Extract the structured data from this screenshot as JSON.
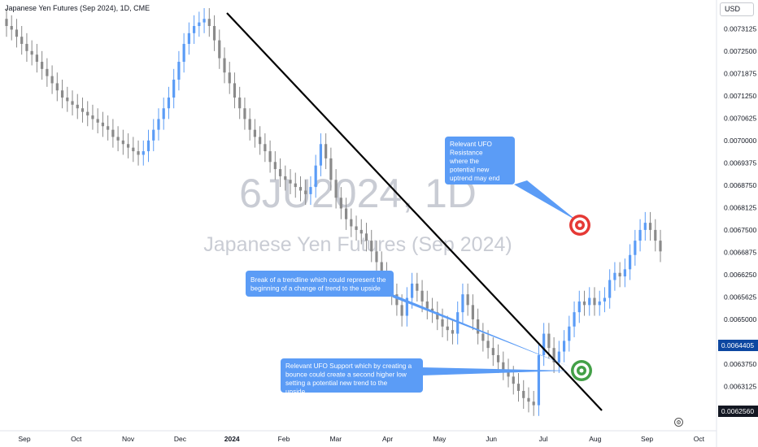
{
  "header": {
    "title": "Japanese Yen Futures (Sep 2024), 1D, CME",
    "currency": "USD"
  },
  "watermark": {
    "symbol": "6JU2024, 1D",
    "name": "Japanese Yen Futures (Sep 2024)"
  },
  "colors": {
    "up_candle": "#5b9cf6",
    "down_candle": "#8a8a8a",
    "trendline": "#000000",
    "callout_fill": "#5b9cf6",
    "callout_text": "#ffffff",
    "target_red": "#e53935",
    "target_green": "#43a047",
    "last_price_bg": "#0d47a1",
    "low_price_bg": "#131722"
  },
  "chart_data": {
    "type": "candlestick",
    "title": "Japanese Yen Futures (Sep 2024), 1D, CME",
    "xlabel": "",
    "ylabel": "",
    "ylim": [
      0.0062,
      0.00737
    ],
    "x_ticks": [
      "Sep",
      "Oct",
      "Nov",
      "Dec",
      "2024",
      "Feb",
      "Mar",
      "Apr",
      "May",
      "Jun",
      "Jul",
      "Aug",
      "Sep",
      "Oct"
    ],
    "y_ticks": [
      "0.0073125",
      "0.0072500",
      "0.0071875",
      "0.0071250",
      "0.0070625",
      "0.0070000",
      "0.0069375",
      "0.0068750",
      "0.0068125",
      "0.0067500",
      "0.0066875",
      "0.0066250",
      "0.0065625",
      "0.0065000",
      "0.0063750",
      "0.0063125"
    ],
    "current_price": "0.0064405",
    "low_price": "0.0062560",
    "series": [
      {
        "approx_close": [
          0.00732,
          0.00731,
          0.00729,
          0.00727,
          0.00725,
          0.00724,
          0.00722,
          0.0072,
          0.00718,
          0.00716,
          0.00714,
          0.00712,
          0.00711,
          0.0071,
          0.00709,
          0.00708,
          0.00707,
          0.00706,
          0.00705,
          0.00704,
          0.00703,
          0.00701,
          0.007,
          0.00699,
          0.00698,
          0.00697,
          0.00696,
          0.00697,
          0.007,
          0.00703,
          0.00706,
          0.00709,
          0.00712,
          0.00717,
          0.00722,
          0.00727,
          0.0073,
          0.00732,
          0.00733,
          0.00734,
          0.00732,
          0.00728,
          0.00723,
          0.00719,
          0.00716,
          0.00712,
          0.00709,
          0.00706,
          0.00703,
          0.00701,
          0.00699,
          0.00697,
          0.00694,
          0.00692,
          0.0069,
          0.00689,
          0.00688,
          0.00687,
          0.00686,
          0.00685,
          0.00687,
          0.00693,
          0.00699,
          0.00695,
          0.00689,
          0.00684,
          0.00681,
          0.00678,
          0.00676,
          0.00675,
          0.00674,
          0.00672,
          0.00669,
          0.00666,
          0.00663,
          0.0066,
          0.00657,
          0.00654,
          0.00651,
          0.00656,
          0.0066,
          0.00658,
          0.00655,
          0.00653,
          0.00652,
          0.0065,
          0.00648,
          0.00647,
          0.00646,
          0.00652,
          0.00657,
          0.00654,
          0.0065,
          0.00646,
          0.00644,
          0.00642,
          0.0064,
          0.00638,
          0.00636,
          0.00634,
          0.00632,
          0.0063,
          0.00628,
          0.00627,
          0.00626,
          0.0064,
          0.00646,
          0.00642,
          0.00638,
          0.00641,
          0.00644,
          0.00648,
          0.00652,
          0.00655,
          0.00654,
          0.00656,
          0.00654,
          0.00655,
          0.00656,
          0.00661,
          0.00663,
          0.00662,
          0.00664,
          0.00668,
          0.00672,
          0.00675,
          0.00677,
          0.00675,
          0.00672,
          0.00669
        ]
      }
    ],
    "annotations": [
      "Relevant UFO Resistance where the potential new uptrend may end",
      "Break of a trendline which could represent the beginning of a change of trend to the upside",
      "Relevant UFO Support which by creating a bounce could create a second higher low setting a potential new trend to the upside"
    ]
  },
  "callouts": {
    "resistance": "Relevant UFO Resistance where the potential new uptrend may end",
    "trendline_break": "Break of a trendline which could represent the beginning of a change of trend to the upside",
    "support": "Relevant UFO Support which by creating a bounce could create a second higher low setting a potential new trend to the upside"
  },
  "icons": {
    "settings": "gear-icon"
  }
}
